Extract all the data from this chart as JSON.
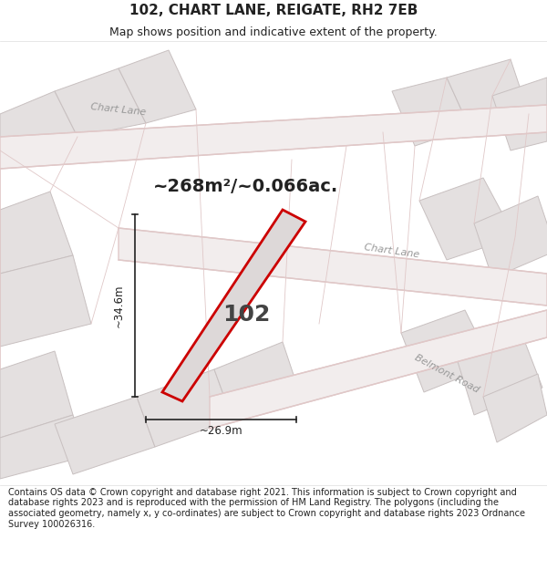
{
  "title": "102, CHART LANE, REIGATE, RH2 7EB",
  "subtitle": "Map shows position and indicative extent of the property.",
  "area_text": "~268m²/~0.066ac.",
  "property_label": "102",
  "dim_width": "~26.9m",
  "dim_height": "~34.6m",
  "footer": "Contains OS data © Crown copyright and database right 2021. This information is subject to Crown copyright and database rights 2023 and is reproduced with the permission of HM Land Registry. The polygons (including the associated geometry, namely x, y co-ordinates) are subject to Crown copyright and database rights 2023 Ordnance Survey 100026316.",
  "title_fontsize": 11,
  "subtitle_fontsize": 9,
  "footer_fontsize": 7,
  "area_fontsize": 14,
  "label_fontsize": 18,
  "road_label_fontsize": 8,
  "dim_fontsize": 8.5,
  "bg_white": "#ffffff",
  "map_bg": "#f7f5f5",
  "block_fill": "#e4e0e0",
  "block_edge": "#c8c0c0",
  "road_fill": "#f2eded",
  "road_edge": "#e0c8c8",
  "prop_fill": "#ddd8d8",
  "prop_edge": "#cc0000",
  "dim_color": "#222222",
  "road_label_color": "#999999",
  "text_color": "#222222",
  "prop_label_color": "#444444"
}
